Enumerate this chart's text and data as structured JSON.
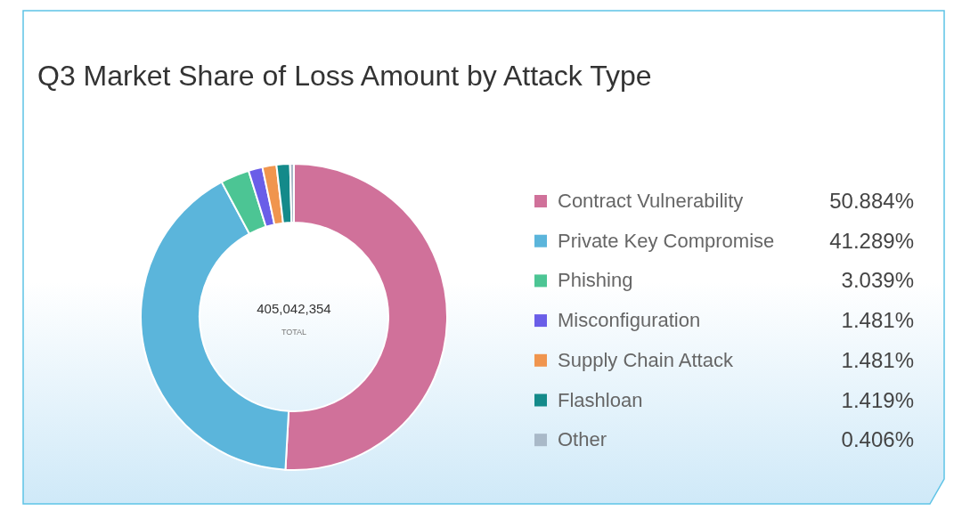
{
  "chart_data": {
    "type": "donut",
    "title": "Q3 Market Share of Loss Amount by Attack Type",
    "categories": [
      "Contract Vulnerability",
      "Private Key Compromise",
      "Phishing",
      "Misconfiguration",
      "Supply Chain Attack",
      "Flashloan",
      "Other"
    ],
    "values": [
      50.884,
      41.289,
      3.039,
      1.481,
      1.481,
      1.419,
      0.406
    ],
    "value_labels": [
      "50.884%",
      "41.289%",
      "3.039%",
      "1.481%",
      "1.481%",
      "1.419%",
      "0.406%"
    ],
    "colors": [
      "#d0719a",
      "#5bb5db",
      "#4cc594",
      "#6a5ee8",
      "#f0954e",
      "#148a8a",
      "#a9b9c8"
    ],
    "annotations": [
      "405,042,354",
      "TOTAL"
    ],
    "legend": "right"
  }
}
